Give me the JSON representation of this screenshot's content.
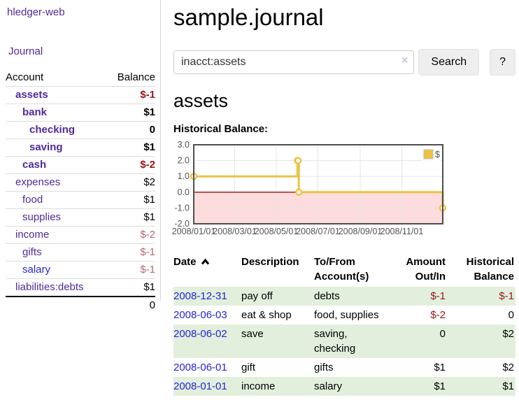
{
  "colors": {
    "purple": "#512a98",
    "blue": "#2626d4",
    "strong_red": "#9b1515",
    "rose": "#b36a72",
    "stripe_green": "#e2efdd"
  },
  "sidebar": {
    "brand": "hledger-web",
    "journal_link": "Journal",
    "accounts_table": {
      "account_header": "Account",
      "balance_header": "Balance",
      "rows": [
        {
          "name": "assets",
          "balance": "$-1"
        },
        {
          "name": "bank",
          "balance": "$1"
        },
        {
          "name": "checking",
          "balance": "0"
        },
        {
          "name": "saving",
          "balance": "$1"
        },
        {
          "name": "cash",
          "balance": "$-2"
        },
        {
          "name": "expenses",
          "balance": "$2"
        },
        {
          "name": "food",
          "balance": "$1"
        },
        {
          "name": "supplies",
          "balance": "$1"
        },
        {
          "name": "income",
          "balance": "$-2"
        },
        {
          "name": "gifts",
          "balance": "$-1"
        },
        {
          "name": "salary",
          "balance": "$-1"
        },
        {
          "name": "liabilities:debts",
          "balance": "$1"
        }
      ],
      "total": "0"
    }
  },
  "header": {
    "title": "sample.journal"
  },
  "search": {
    "value": "inacct:assets",
    "clear_icon": "×",
    "search_button": "Search",
    "help_button": "?"
  },
  "account_page": {
    "heading": "assets",
    "chart_title": "Historical Balance:"
  },
  "register": {
    "columns": {
      "date": "Date",
      "description": "Description",
      "tofrom": "To/From Account(s)",
      "amount": "Amount Out/In",
      "balance": "Historical Balance"
    },
    "rows": [
      {
        "date": "2008-12-31",
        "description": "pay off",
        "accounts": "debts",
        "amount": "$-1",
        "balance": "$-1"
      },
      {
        "date": "2008-06-03",
        "description": "eat & shop",
        "accounts": "food, supplies",
        "amount": "$-2",
        "balance": "0"
      },
      {
        "date": "2008-06-02",
        "description": "save",
        "accounts": "saving, checking",
        "amount": "0",
        "balance": "$2"
      },
      {
        "date": "2008-06-01",
        "description": "gift",
        "accounts": "gifts",
        "amount": "$1",
        "balance": "$2"
      },
      {
        "date": "2008-01-01",
        "description": "income",
        "accounts": "salary",
        "amount": "$1",
        "balance": "$1"
      }
    ]
  },
  "chart_data": {
    "type": "line",
    "style": "step-after",
    "xlim": [
      "2008-01-01",
      "2008-12-31"
    ],
    "ylim": [
      -2,
      3
    ],
    "y_ticks": [
      3,
      2,
      1,
      0,
      -1,
      -2
    ],
    "x_ticks": [
      "2008/01/01",
      "2008/03/01",
      "2008/05/01",
      "2008/07/01",
      "2008/09/01",
      "2008/11/01"
    ],
    "grid": true,
    "legend": {
      "position": "ne"
    },
    "series": [
      {
        "name": "$",
        "color": "#edc240",
        "points": [
          [
            "2008-01-01",
            1
          ],
          [
            "2008-06-01",
            2
          ],
          [
            "2008-06-02",
            2
          ],
          [
            "2008-06-03",
            0
          ],
          [
            "2008-12-31",
            -1
          ]
        ]
      }
    ],
    "negative_region_color": "#fcdcdc",
    "zero_line_color": "#990f0f",
    "grid_color": "#e5e5e5",
    "border_color": "#4d4d4d"
  }
}
